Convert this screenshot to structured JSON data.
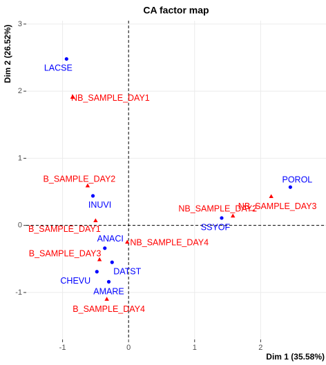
{
  "chart_data": {
    "type": "scatter",
    "title": "CA factor map",
    "x_label": "Dim 1 (35.58%)",
    "y_label": "Dim 2 (26.52%)",
    "xlim": [
      -1.55,
      2.99
    ],
    "ylim": [
      -1.7,
      3.05
    ],
    "xticks": [
      -1,
      0,
      1,
      2
    ],
    "yticks": [
      -1,
      0,
      1,
      2,
      3
    ],
    "grid": true,
    "series": [
      {
        "color": "#0000ff",
        "marker": "circle",
        "labels": [
          "LACSE",
          "INUVI",
          "ANACI",
          "DATST",
          "CHEVU",
          "AMARE",
          "SSYOF",
          "POROL"
        ],
        "x": [
          -0.94,
          -0.54,
          -0.36,
          -0.25,
          -0.48,
          -0.3,
          1.41,
          2.45
        ],
        "y": [
          2.48,
          0.44,
          -0.34,
          -0.55,
          -0.69,
          -0.84,
          0.11,
          0.57
        ]
      },
      {
        "color": "#ff0000",
        "marker": "triangle",
        "labels": [
          "NB_SAMPLE_DAY1",
          "B_SAMPLE_DAY2",
          "B_SAMPLE_DAY1",
          "B_SAMPLE_DAY3",
          "NB_SAMPLE_DAY4",
          "B_SAMPLE_DAY4",
          "NB_SAMPLE_DAY2",
          "NB_SAMPLE_DAY3"
        ],
        "x": [
          -0.85,
          -0.62,
          -0.5,
          -0.44,
          -0.02,
          -0.33,
          1.58,
          2.16
        ],
        "y": [
          1.91,
          0.59,
          0.07,
          -0.51,
          -0.25,
          -1.1,
          0.14,
          0.43
        ]
      }
    ]
  }
}
